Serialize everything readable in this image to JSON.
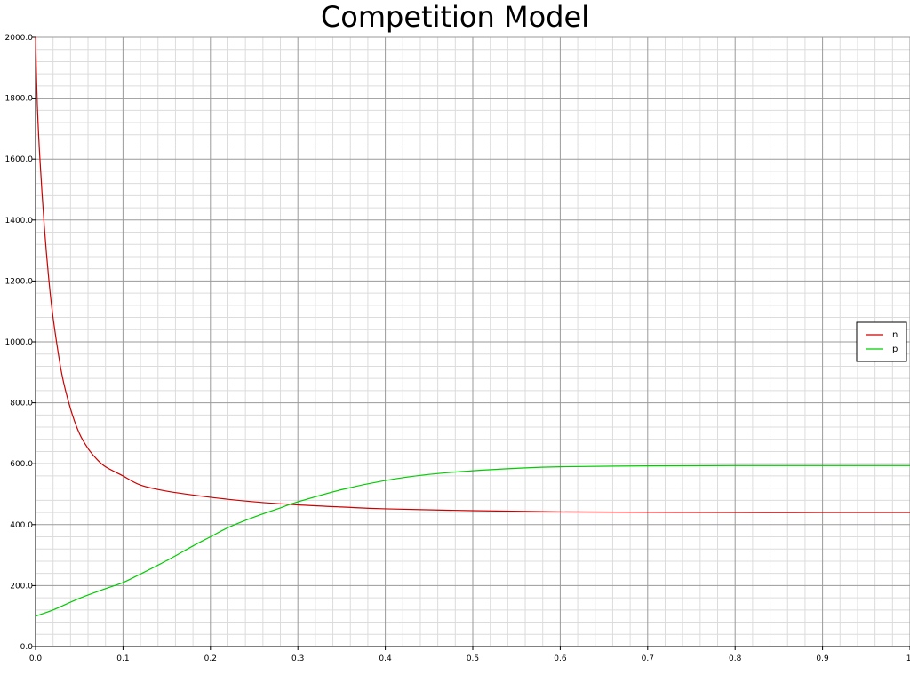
{
  "chart_data": {
    "type": "line",
    "title": "Competition Model",
    "xlabel": "",
    "ylabel": "",
    "xlim": [
      0,
      1
    ],
    "ylim": [
      0,
      2000
    ],
    "x_ticks": [
      "0.0",
      "0.1",
      "0.2",
      "0.3",
      "0.4",
      "0.5",
      "0.6",
      "0.7",
      "0.8",
      "0.9",
      "1."
    ],
    "y_ticks": [
      "0.0",
      "200.0",
      "400.0",
      "600.0",
      "800.0",
      "1000.0",
      "1200.0",
      "1400.0",
      "1600.0",
      "1800.0",
      "2000.0"
    ],
    "grid": true,
    "legend_position": "right",
    "series": [
      {
        "name": "n",
        "color": "#cc0000",
        "x": [
          0,
          0.002,
          0.005,
          0.01,
          0.015,
          0.02,
          0.03,
          0.04,
          0.05,
          0.06,
          0.07,
          0.08,
          0.1,
          0.12,
          0.15,
          0.2,
          0.25,
          0.3,
          0.35,
          0.4,
          0.5,
          0.6,
          0.7,
          0.8,
          0.9,
          1.0
        ],
        "y": [
          2000,
          1780,
          1600,
          1380,
          1210,
          1080,
          895,
          780,
          700,
          650,
          615,
          590,
          560,
          530,
          510,
          490,
          475,
          465,
          458,
          452,
          446,
          442,
          441,
          440,
          440,
          440
        ]
      },
      {
        "name": "p",
        "color": "#00cc00",
        "x": [
          0,
          0.02,
          0.05,
          0.08,
          0.1,
          0.12,
          0.15,
          0.18,
          0.2,
          0.22,
          0.25,
          0.28,
          0.3,
          0.35,
          0.4,
          0.45,
          0.5,
          0.55,
          0.6,
          0.7,
          0.8,
          0.9,
          1.0
        ],
        "y": [
          100,
          120,
          158,
          190,
          210,
          238,
          282,
          330,
          360,
          390,
          425,
          455,
          475,
          515,
          545,
          565,
          577,
          585,
          590,
          593,
          594,
          594,
          594
        ]
      }
    ]
  }
}
